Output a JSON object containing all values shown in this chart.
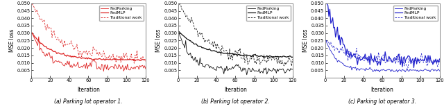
{
  "n_iterations": 120,
  "subplot_titles": [
    "(a) Parking lot operator 1.",
    "(b) Parking lot operator 2.",
    "(c) Parking lot operator 3."
  ],
  "ylabel": "MSE loss",
  "xlabel": "Iteration",
  "legend_labels": [
    "FedParking",
    "FedMLP",
    "Traditional work"
  ],
  "color_red": "#dd2222",
  "color_black": "#111111",
  "color_blue": "#2222cc",
  "ylim": [
    0,
    0.05
  ],
  "xlim": [
    0,
    120
  ],
  "yticks": [
    0.005,
    0.01,
    0.015,
    0.02,
    0.025,
    0.03,
    0.035,
    0.04,
    0.045,
    0.05
  ],
  "xticks": [
    0,
    20,
    40,
    60,
    80,
    100,
    120
  ]
}
